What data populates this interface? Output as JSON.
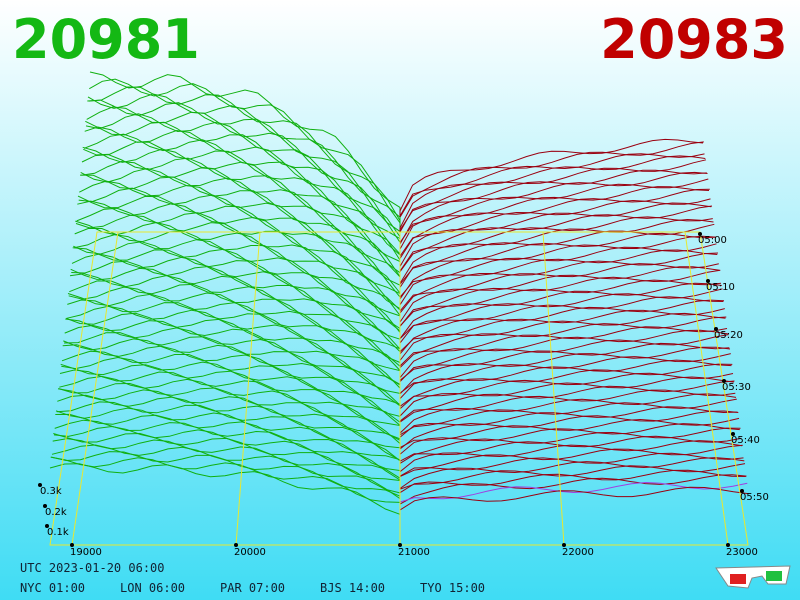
{
  "header": {
    "bid": "20981",
    "ask": "20983"
  },
  "axes": {
    "price_labels": [
      "19000",
      "20000",
      "21000",
      "22000",
      "23000"
    ],
    "time_labels": [
      "05:00",
      "05:10",
      "05:20",
      "05:30",
      "05:40",
      "05:50"
    ],
    "depth_labels": [
      "0.3k",
      "0.2k",
      "0.1k"
    ]
  },
  "footer": {
    "utc": "UTC 2023-01-20 06:00",
    "zones": [
      "NYC 01:00",
      "LON 06:00",
      "PAR 07:00",
      "BJS 14:00",
      "TYO 15:00"
    ]
  }
}
